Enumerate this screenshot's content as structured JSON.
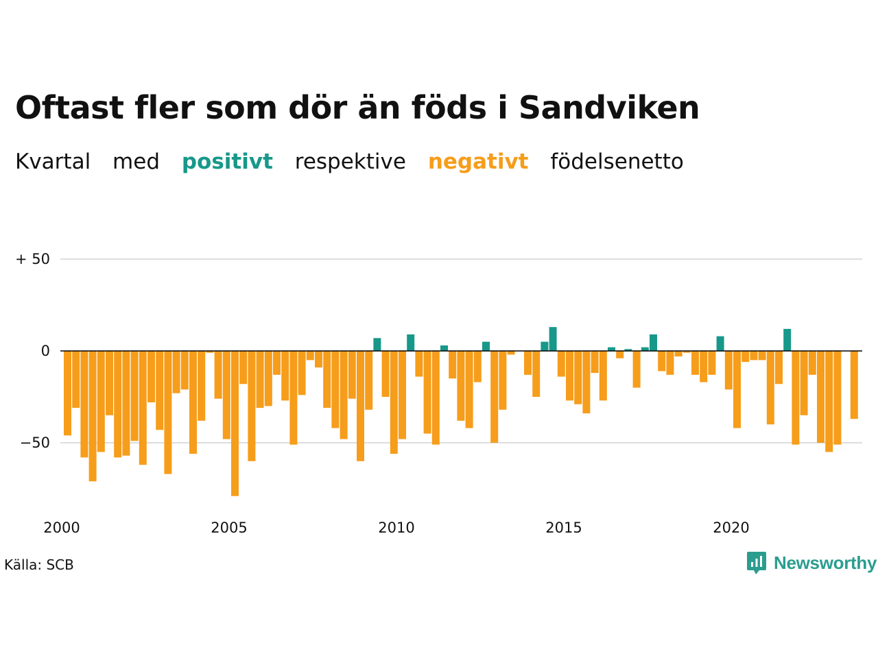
{
  "title": "Oftast fler som dör än föds i Sandviken",
  "subtitle": {
    "w1": "Kvartal",
    "w2": "med",
    "positive": "positivt",
    "w3": "respektive",
    "negative": "negativt",
    "w4": "födelsenetto"
  },
  "source": "Källa: SCB",
  "brand": "Newsworthy",
  "colors": {
    "positive": "#17988a",
    "negative": "#f69d1b",
    "grid": "#dddddd",
    "brand": "#2a9d8f"
  },
  "chart_data": {
    "type": "bar",
    "x_start": "2000 Q1",
    "ylim": [
      -85,
      55
    ],
    "yticks": [
      {
        "value": 50,
        "label": "+ 50"
      },
      {
        "value": 0,
        "label": "0"
      },
      {
        "value": -50,
        "label": "−50"
      }
    ],
    "xticks": [
      "2000",
      "2005",
      "2010",
      "2015",
      "2020"
    ],
    "grid": true,
    "values": [
      -46,
      -31,
      -58,
      -71,
      -55,
      -35,
      -58,
      -57,
      -49,
      -62,
      -28,
      -43,
      -67,
      -23,
      -21,
      -56,
      -38,
      -1,
      -26,
      -48,
      -79,
      -18,
      -60,
      -31,
      -30,
      -13,
      -27,
      -51,
      -24,
      -5,
      -9,
      -31,
      -42,
      -48,
      -26,
      -60,
      -32,
      7,
      -25,
      -56,
      -48,
      9,
      -14,
      -45,
      -51,
      3,
      -15,
      -38,
      -42,
      -17,
      5,
      -50,
      -32,
      -2,
      0,
      -13,
      -25,
      5,
      13,
      -14,
      -27,
      -29,
      -34,
      -12,
      -27,
      2,
      -4,
      1,
      -20,
      2,
      9,
      -11,
      -13,
      -3,
      -1,
      -13,
      -17,
      -13,
      8,
      -21,
      -42,
      -6,
      -5,
      -5,
      -40,
      -18,
      12,
      -51,
      -35,
      -13,
      -50,
      -55,
      -51,
      0,
      -37
    ]
  }
}
